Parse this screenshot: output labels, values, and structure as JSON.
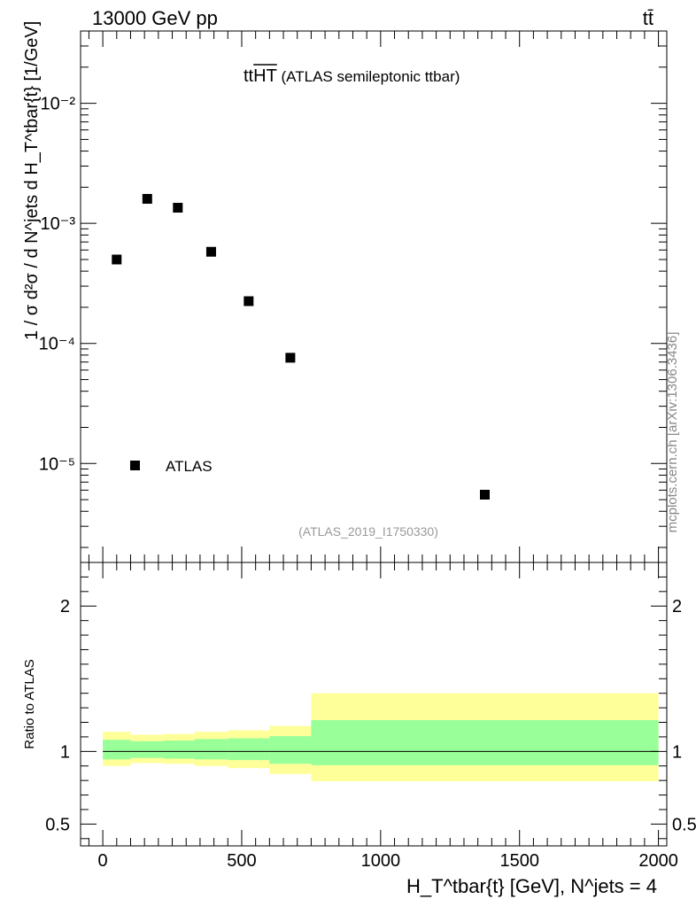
{
  "header": {
    "energy_label": "13000 GeV pp",
    "process_label": "tt̄"
  },
  "side_label": "mcplots.cern.ch [arXiv:1306.3436]",
  "chart_data": [
    {
      "type": "scatter",
      "panel": "main",
      "title_main": "tt",
      "title_over": "HT",
      "title_rest": " (ATLAS semileptonic ttbar)",
      "watermark": "(ATLAS_2019_I1750330)",
      "ylabel": "1 / σ d²σ / d N^jets d H_T^tbar{t} [1/GeV]",
      "y_scale": "log",
      "xlim": [
        -80,
        2030
      ],
      "ylim": [
        1.5e-06,
        0.04
      ],
      "y_tick_labels": [
        "10⁻⁵",
        "10⁻⁴",
        "10⁻³",
        "10⁻²"
      ],
      "legend": {
        "position": "bottom-left",
        "entries": [
          "ATLAS"
        ]
      },
      "series": [
        {
          "name": "ATLAS",
          "marker": "square",
          "color": "#000000",
          "x": [
            50,
            160,
            270,
            390,
            525,
            675,
            1375
          ],
          "y": [
            0.0005,
            0.0016,
            0.00135,
            0.00058,
            0.000225,
            7.6e-05,
            5.5e-06
          ]
        }
      ]
    },
    {
      "type": "area",
      "panel": "ratio",
      "ylabel": "Ratio to ATLAS",
      "xlabel": "H_T^tbar{t} [GeV], N^jets = 4",
      "xlim": [
        -80,
        2030
      ],
      "ylim": [
        0.35,
        2.3
      ],
      "x_ticks": [
        0,
        500,
        1000,
        1500,
        2000
      ],
      "y_ticks": [
        0.5,
        1,
        2
      ],
      "y_tick_labels": [
        "0.5",
        "1",
        "2"
      ],
      "reference_line": 1,
      "bands": [
        {
          "color": "#ffff99",
          "bin_edges": [
            0,
            100,
            220,
            330,
            450,
            600,
            750,
            2000
          ],
          "low": [
            0.9,
            0.92,
            0.915,
            0.9,
            0.885,
            0.845,
            0.795
          ],
          "high": [
            1.135,
            1.115,
            1.12,
            1.135,
            1.145,
            1.175,
            1.4
          ]
        },
        {
          "color": "#99ff99",
          "bin_edges": [
            0,
            100,
            220,
            330,
            450,
            600,
            750,
            2000
          ],
          "low": [
            0.945,
            0.955,
            0.95,
            0.945,
            0.94,
            0.915,
            0.905
          ],
          "high": [
            1.08,
            1.07,
            1.075,
            1.085,
            1.09,
            1.105,
            1.215
          ]
        }
      ]
    }
  ]
}
